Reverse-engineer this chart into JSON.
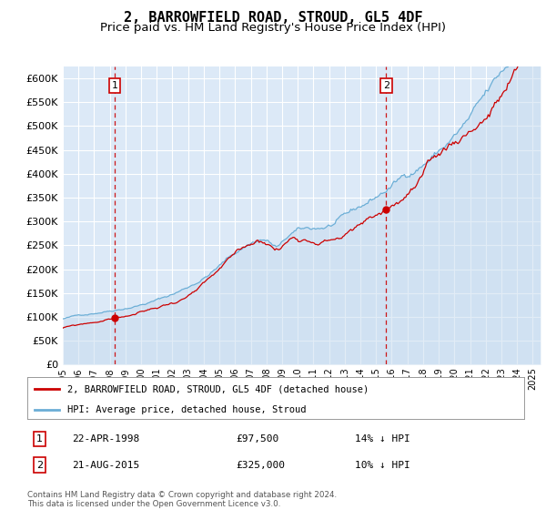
{
  "title": "2, BARROWFIELD ROAD, STROUD, GL5 4DF",
  "subtitle": "Price paid vs. HM Land Registry's House Price Index (HPI)",
  "title_fontsize": 11,
  "subtitle_fontsize": 9.5,
  "ytick_values": [
    0,
    50000,
    100000,
    150000,
    200000,
    250000,
    300000,
    350000,
    400000,
    450000,
    500000,
    550000,
    600000
  ],
  "ylim": [
    0,
    625000
  ],
  "xlim_start": 1995.0,
  "xlim_end": 2025.5,
  "background_color": "#dce9f7",
  "grid_color": "#ffffff",
  "sale1_x": 1998.31,
  "sale1_y": 97500,
  "sale1_label": "1",
  "sale1_date": "22-APR-1998",
  "sale1_price": "£97,500",
  "sale1_hpi": "14% ↓ HPI",
  "sale2_x": 2015.64,
  "sale2_y": 325000,
  "sale2_label": "2",
  "sale2_date": "21-AUG-2015",
  "sale2_price": "£325,000",
  "sale2_hpi": "10% ↓ HPI",
  "line1_color": "#cc0000",
  "line2_color": "#6baed6",
  "line2_fill_color": "#c6dbef",
  "legend_line1": "2, BARROWFIELD ROAD, STROUD, GL5 4DF (detached house)",
  "legend_line2": "HPI: Average price, detached house, Stroud",
  "footer": "Contains HM Land Registry data © Crown copyright and database right 2024.\nThis data is licensed under the Open Government Licence v3.0.",
  "marker_box_color": "#cc0000",
  "dashed_line_color": "#cc0000"
}
